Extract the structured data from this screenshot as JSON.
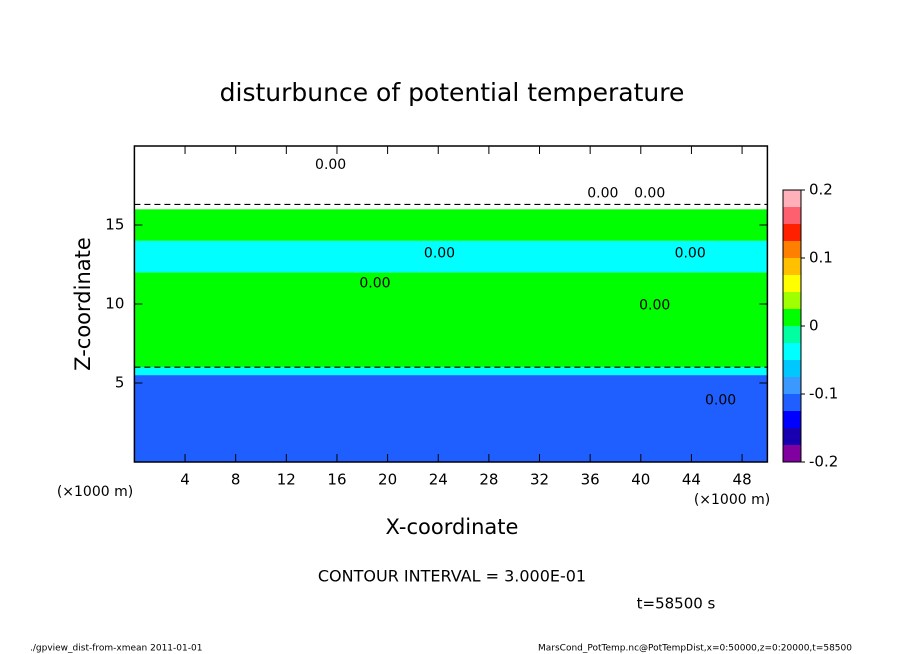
{
  "chart_data": {
    "type": "contour",
    "title": "disturbunce of potential temperature",
    "x_label": "X-coordinate",
    "y_label": "Z-coordinate",
    "x_unit": "(×1000 m)",
    "y_unit": "(×1000 m)",
    "xlim": [
      0,
      50
    ],
    "xticks": [
      4,
      8,
      12,
      16,
      20,
      24,
      28,
      32,
      36,
      40,
      44,
      48
    ],
    "ylim": [
      0,
      20
    ],
    "yticks": [
      5,
      10,
      15
    ],
    "field": {
      "z_edges": [
        0,
        5.5,
        6,
        12,
        14,
        16,
        20
      ],
      "values": [
        -0.12,
        -0.05,
        0,
        -0.05,
        0,
        null
      ]
    },
    "colorbar": {
      "levels": [
        -0.2,
        -0.175,
        -0.15,
        -0.125,
        -0.1,
        -0.075,
        -0.05,
        -0.025,
        0,
        0.025,
        0.05,
        0.075,
        0.1,
        0.125,
        0.15,
        0.175,
        0.2
      ],
      "colors": [
        "#8000a0",
        "#1800b0",
        "#0000ff",
        "#1f5fff",
        "#3a98ff",
        "#00c8ff",
        "#00ffff",
        "#00ffa0",
        "#00ff00",
        "#a0ff00",
        "#ffff00",
        "#ffc000",
        "#ff8000",
        "#ff2000",
        "#ff6070",
        "#ffb0b8"
      ],
      "ticks": [
        -0.2,
        -0.1,
        0,
        0.1,
        0.2
      ]
    },
    "contour_labels": [
      {
        "x": 24.1,
        "z": 13.2,
        "label": "0.00"
      },
      {
        "x": 43.9,
        "z": 13.2,
        "label": "0.00"
      },
      {
        "x": 19,
        "z": 11.3,
        "label": "0.00"
      },
      {
        "x": 41.1,
        "z": 9.9,
        "label": "0.00"
      },
      {
        "x": 46.3,
        "z": 3.9,
        "label": "0.00"
      },
      {
        "x": 15.5,
        "z": 18.8,
        "label": "0.00"
      },
      {
        "x": 37,
        "z": 17,
        "label": "0.00"
      },
      {
        "x": 40.7,
        "z": 17,
        "label": "0.00"
      }
    ],
    "contour_interval": "CONTOUR INTERVAL = 3.000E-01",
    "time_label": "t=58500 s",
    "footer_left": "./gpview_dist-from-xmean  2011-01-01",
    "footer_right": "MarsCond_PotTemp.nc@PotTempDist,x=0:50000,z=0:20000,t=58500"
  }
}
